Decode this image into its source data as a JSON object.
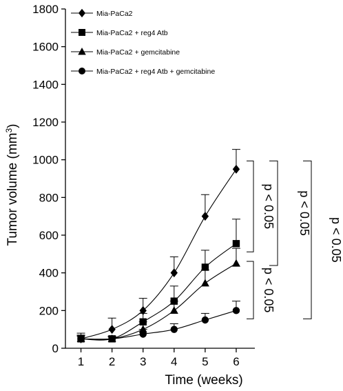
{
  "chart_data": {
    "type": "line",
    "xlabel": "Time (weeks)",
    "ylabel_main": "Tumor volume (mm",
    "ylabel_sup": "3",
    "ylabel_close": ")",
    "x": [
      1,
      2,
      3,
      4,
      5,
      6
    ],
    "x_ticks": [
      "1",
      "2",
      "3",
      "4",
      "5",
      "6"
    ],
    "xlim": [
      0.5,
      6.6
    ],
    "ylim": [
      0,
      1800
    ],
    "y_ticks": [
      0,
      200,
      400,
      600,
      800,
      1000,
      1200,
      1400,
      1600,
      1800
    ],
    "grid": false,
    "legend_position": "top-left",
    "series": [
      {
        "name": "Mia-PaCa2",
        "marker": "diamond",
        "values": [
          50,
          100,
          200,
          400,
          700,
          950
        ],
        "errors": [
          30,
          60,
          65,
          85,
          115,
          105
        ]
      },
      {
        "name": "Mia-PaCa2 + reg4 Atb",
        "marker": "square",
        "values": [
          50,
          50,
          140,
          250,
          430,
          555
        ],
        "errors": [
          20,
          15,
          45,
          80,
          90,
          130
        ]
      },
      {
        "name": "Mia-PaCa2 + gemcitabine",
        "marker": "triangle",
        "values": [
          50,
          50,
          100,
          200,
          345,
          450
        ],
        "errors": [
          15,
          10,
          40,
          50,
          70,
          80
        ]
      },
      {
        "name": "Mia-PaCa2 + reg4 Atb + gemcitabine",
        "marker": "circle",
        "values": [
          50,
          50,
          75,
          100,
          150,
          200
        ],
        "errors": [
          15,
          10,
          25,
          30,
          35,
          50
        ]
      }
    ],
    "annotations": [
      {
        "text": "p < 0.05",
        "from": 950,
        "to": 555
      },
      {
        "text": "p < 0.05",
        "from": 450,
        "to": 200
      },
      {
        "text": "p < 0.05",
        "from": 950,
        "to": 450
      },
      {
        "text": "p < 0.05",
        "from": 950,
        "to": 200
      }
    ]
  }
}
